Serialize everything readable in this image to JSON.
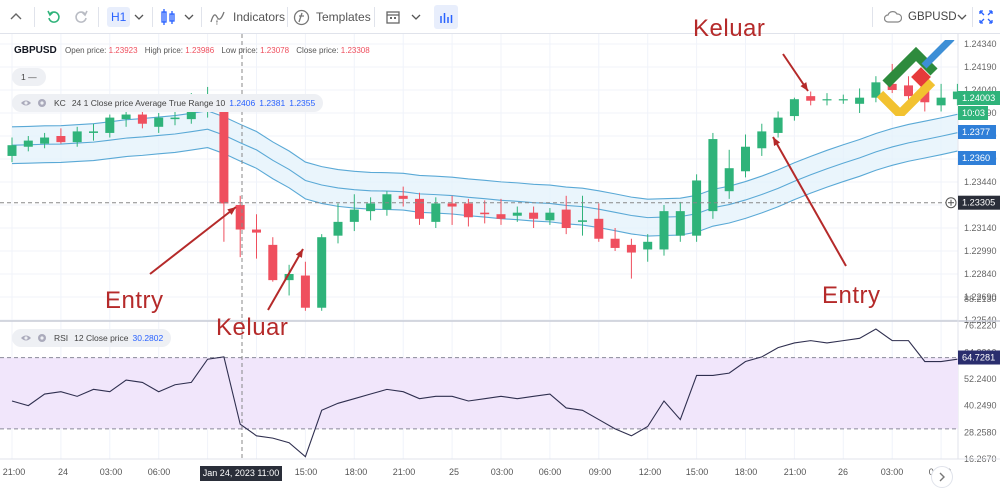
{
  "toolbar": {
    "interval": "H1",
    "indicators_label": "Indicators",
    "templates_label": "Templates",
    "symbol": "GBPUSD"
  },
  "ohlc": {
    "symbol": "GBPUSD",
    "open_label": "Open price:",
    "open": "1.23923",
    "high_label": "High price:",
    "high": "1.23986",
    "low_label": "Low price:",
    "low": "1.23078",
    "close_label": "Close price:",
    "close": "1.23308"
  },
  "pane_counter": "1 —",
  "kc_legend": {
    "name": "KC",
    "params": "24 1 Close price Average True Range 10",
    "v1": "1.2406",
    "v2": "1.2381",
    "v3": "1.2355"
  },
  "rsi_legend": {
    "name": "RSI",
    "params": "12 Close price",
    "value": "30.2802"
  },
  "price_axis": [
    "1.24340",
    "1.24190",
    "1.24040",
    "1.23890",
    "1.23740",
    "1.23590",
    "1.23440",
    "1.23290",
    "1.23140",
    "1.22990",
    "1.22840",
    "1.22690",
    "1.22540"
  ],
  "price_badges": {
    "upper": "1.24003",
    "time": "10:03",
    "mid": "1.2377",
    "lower": "1.2360",
    "cross": "1.23305"
  },
  "rsi_axis": [
    "88.2130",
    "76.2220",
    "64.2310",
    "52.2400",
    "40.2490",
    "28.2580",
    "16.2670"
  ],
  "rsi_badge": "64.7281",
  "time_axis": [
    "21:00",
    "24",
    "03:00",
    "06:00",
    "15:00",
    "18:00",
    "21:00",
    "25",
    "03:00",
    "06:00",
    "09:00",
    "12:00",
    "15:00",
    "18:00",
    "21:00",
    "26",
    "03:00",
    "06:00"
  ],
  "crosshair_time": "Jan 24, 2023 11:00",
  "annotations": {
    "entry_left": "Entry",
    "exit_left": "Keluar",
    "exit_right": "Keluar",
    "entry_right": "Entry"
  },
  "colors": {
    "up": "#2fb37a",
    "down": "#ef4f5e",
    "channel_line": "#5aa9d6",
    "channel_fill": "#e3f2fb",
    "rsi_band": "#f1e6fb",
    "annotation": "#b52a2a"
  },
  "candles": [
    {
      "o": 1.2361,
      "h": 1.2373,
      "l": 1.2357,
      "c": 1.2368
    },
    {
      "o": 1.2367,
      "h": 1.2374,
      "l": 1.2364,
      "c": 1.2371
    },
    {
      "o": 1.2369,
      "h": 1.2376,
      "l": 1.2366,
      "c": 1.2373
    },
    {
      "o": 1.2374,
      "h": 1.2379,
      "l": 1.2369,
      "c": 1.237
    },
    {
      "o": 1.237,
      "h": 1.238,
      "l": 1.2367,
      "c": 1.2377
    },
    {
      "o": 1.2376,
      "h": 1.2382,
      "l": 1.2371,
      "c": 1.2377
    },
    {
      "o": 1.2376,
      "h": 1.2388,
      "l": 1.2373,
      "c": 1.2386
    },
    {
      "o": 1.2385,
      "h": 1.2395,
      "l": 1.238,
      "c": 1.2388
    },
    {
      "o": 1.2388,
      "h": 1.2394,
      "l": 1.2379,
      "c": 1.2382
    },
    {
      "o": 1.238,
      "h": 1.2389,
      "l": 1.2376,
      "c": 1.2386
    },
    {
      "o": 1.2385,
      "h": 1.2398,
      "l": 1.2381,
      "c": 1.2386
    },
    {
      "o": 1.2385,
      "h": 1.2402,
      "l": 1.2382,
      "c": 1.2394
    },
    {
      "o": 1.2393,
      "h": 1.2406,
      "l": 1.2386,
      "c": 1.2397
    },
    {
      "o": 1.2392,
      "h": 1.2399,
      "l": 1.2305,
      "c": 1.233
    },
    {
      "o": 1.2329,
      "h": 1.2335,
      "l": 1.2295,
      "c": 1.2313
    },
    {
      "o": 1.2313,
      "h": 1.2323,
      "l": 1.2294,
      "c": 1.2311
    },
    {
      "o": 1.2303,
      "h": 1.2308,
      "l": 1.2279,
      "c": 1.228
    },
    {
      "o": 1.228,
      "h": 1.229,
      "l": 1.227,
      "c": 1.2284
    },
    {
      "o": 1.2283,
      "h": 1.2292,
      "l": 1.226,
      "c": 1.2262
    },
    {
      "o": 1.2262,
      "h": 1.231,
      "l": 1.226,
      "c": 1.2308
    },
    {
      "o": 1.2309,
      "h": 1.233,
      "l": 1.2304,
      "c": 1.2318
    },
    {
      "o": 1.2318,
      "h": 1.2336,
      "l": 1.2312,
      "c": 1.2326
    },
    {
      "o": 1.2325,
      "h": 1.2334,
      "l": 1.2319,
      "c": 1.233
    },
    {
      "o": 1.2326,
      "h": 1.2338,
      "l": 1.2322,
      "c": 1.2336
    },
    {
      "o": 1.2335,
      "h": 1.2341,
      "l": 1.2328,
      "c": 1.2333
    },
    {
      "o": 1.2333,
      "h": 1.2337,
      "l": 1.2316,
      "c": 1.232
    },
    {
      "o": 1.2318,
      "h": 1.2334,
      "l": 1.2314,
      "c": 1.233
    },
    {
      "o": 1.233,
      "h": 1.2335,
      "l": 1.2316,
      "c": 1.2328
    },
    {
      "o": 1.233,
      "h": 1.2333,
      "l": 1.2315,
      "c": 1.2321
    },
    {
      "o": 1.2324,
      "h": 1.2332,
      "l": 1.2317,
      "c": 1.2323
    },
    {
      "o": 1.2323,
      "h": 1.2333,
      "l": 1.2316,
      "c": 1.232
    },
    {
      "o": 1.2322,
      "h": 1.2328,
      "l": 1.2318,
      "c": 1.2324
    },
    {
      "o": 1.2324,
      "h": 1.2328,
      "l": 1.2314,
      "c": 1.232
    },
    {
      "o": 1.2319,
      "h": 1.2327,
      "l": 1.2316,
      "c": 1.2324
    },
    {
      "o": 1.2326,
      "h": 1.2335,
      "l": 1.231,
      "c": 1.2314
    },
    {
      "o": 1.2318,
      "h": 1.2335,
      "l": 1.2309,
      "c": 1.2319
    },
    {
      "o": 1.232,
      "h": 1.233,
      "l": 1.2305,
      "c": 1.2307
    },
    {
      "o": 1.2307,
      "h": 1.2314,
      "l": 1.2299,
      "c": 1.2301
    },
    {
      "o": 1.2303,
      "h": 1.2307,
      "l": 1.2281,
      "c": 1.2298
    },
    {
      "o": 1.23,
      "h": 1.231,
      "l": 1.2292,
      "c": 1.2305
    },
    {
      "o": 1.23,
      "h": 1.2329,
      "l": 1.2296,
      "c": 1.2325
    },
    {
      "o": 1.2309,
      "h": 1.2331,
      "l": 1.2305,
      "c": 1.2325
    },
    {
      "o": 1.2309,
      "h": 1.2349,
      "l": 1.2305,
      "c": 1.2345
    },
    {
      "o": 1.2325,
      "h": 1.2376,
      "l": 1.232,
      "c": 1.2372
    },
    {
      "o": 1.2338,
      "h": 1.2365,
      "l": 1.2333,
      "c": 1.2353
    },
    {
      "o": 1.2351,
      "h": 1.2375,
      "l": 1.2347,
      "c": 1.2367
    },
    {
      "o": 1.2366,
      "h": 1.2382,
      "l": 1.2361,
      "c": 1.2377
    },
    {
      "o": 1.2376,
      "h": 1.239,
      "l": 1.2373,
      "c": 1.2386
    },
    {
      "o": 1.2387,
      "h": 1.2399,
      "l": 1.2384,
      "c": 1.2398
    },
    {
      "o": 1.24,
      "h": 1.2403,
      "l": 1.2394,
      "c": 1.2397
    },
    {
      "o": 1.2398,
      "h": 1.2402,
      "l": 1.2394,
      "c": 1.2398
    },
    {
      "o": 1.2398,
      "h": 1.2401,
      "l": 1.2395,
      "c": 1.2398
    },
    {
      "o": 1.2395,
      "h": 1.2405,
      "l": 1.2389,
      "c": 1.2399
    },
    {
      "o": 1.2399,
      "h": 1.2413,
      "l": 1.2396,
      "c": 1.2409
    },
    {
      "o": 1.2408,
      "h": 1.2421,
      "l": 1.2402,
      "c": 1.2404
    },
    {
      "o": 1.2407,
      "h": 1.2413,
      "l": 1.2396,
      "c": 1.24
    },
    {
      "o": 1.2406,
      "h": 1.2413,
      "l": 1.239,
      "c": 1.2396
    },
    {
      "o": 1.2394,
      "h": 1.2408,
      "l": 1.239,
      "c": 1.2399
    },
    {
      "o": 1.2398,
      "h": 1.2408,
      "l": 1.2394,
      "c": 1.2403
    }
  ],
  "rsi_values": [
    46,
    44,
    49,
    50,
    48,
    51,
    50,
    55,
    54,
    50,
    53,
    54,
    64,
    65,
    36,
    31,
    30,
    28,
    22,
    42,
    45,
    47,
    49,
    51,
    50,
    47,
    48,
    48,
    46,
    47,
    48,
    47,
    48,
    49,
    43,
    42,
    38,
    34,
    31,
    35,
    46,
    38,
    57,
    57,
    58,
    63,
    65,
    69,
    71,
    72,
    71,
    72,
    73,
    77,
    72,
    72,
    63,
    63,
    64
  ]
}
